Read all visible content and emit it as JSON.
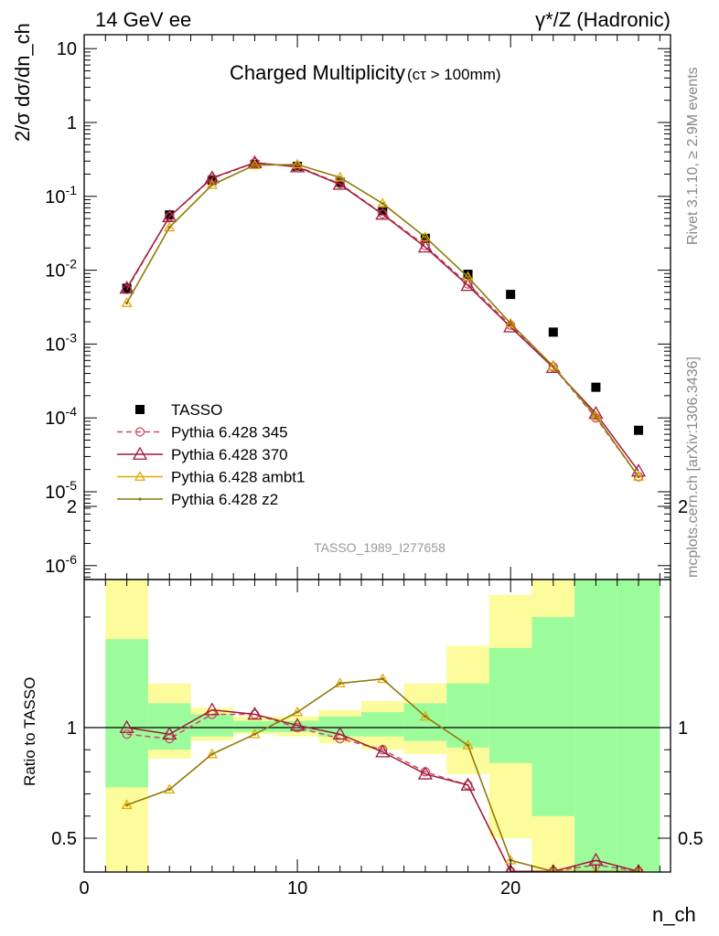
{
  "header": {
    "left": "14 GeV ee",
    "right": "γ*/Z (Hadronic)"
  },
  "side": {
    "rivet": "Rivet 3.1.10, ≥ 2.9M events",
    "mcplots": "mcplots.cern.ch [arXiv:1306.3436]"
  },
  "chart_data": [
    {
      "type": "scatter",
      "title": "Charged Multiplicity",
      "subtitle": "(cτ > 100mm)",
      "ylabel": "2/σ dσ/dn_ch",
      "ylog": true,
      "ylim": [
        5e-07,
        20
      ],
      "xlim": [
        0,
        27.5
      ],
      "yticks": [
        "10^-6",
        "10^-5",
        "10^-4",
        "10^-3",
        "10^-2",
        "10^-1",
        "1",
        "10"
      ],
      "reference": "TASSO_1989_I277658",
      "legend_position": "bottom-left",
      "x": [
        2,
        4,
        6,
        8,
        10,
        12,
        14,
        16,
        18,
        20,
        22,
        24,
        26
      ],
      "series": [
        {
          "name": "TASSO",
          "color": "#000000",
          "marker": "square",
          "values": [
            0.0057,
            0.056,
            0.165,
            0.27,
            0.255,
            0.155,
            0.064,
            0.027,
            0.0088,
            0.0047,
            0.00145,
            0.00026,
            6.8e-05
          ]
        },
        {
          "name": "Pythia 6.428 345",
          "color": "#cc4c66",
          "marker": "circle",
          "dashed": true,
          "values": [
            0.0055,
            0.053,
            0.175,
            0.285,
            0.255,
            0.148,
            0.058,
            0.0215,
            0.0065,
            0.0018,
            0.00049,
            0.0001,
            1.6e-05
          ]
        },
        {
          "name": "Pythia 6.428 370",
          "color": "#a01a3a",
          "marker": "triangle",
          "values": [
            0.0057,
            0.053,
            0.178,
            0.285,
            0.25,
            0.145,
            0.057,
            0.0205,
            0.0062,
            0.0017,
            0.00048,
            0.000115,
            1.9e-05
          ]
        },
        {
          "name": "Pythia 6.428 ambt1",
          "color": "#e8a800",
          "marker": "triangle",
          "values": [
            0.0036,
            0.038,
            0.143,
            0.265,
            0.27,
            0.18,
            0.08,
            0.028,
            0.0081,
            0.0019,
            0.0005,
            0.000105,
            1.6e-05
          ]
        },
        {
          "name": "Pythia 6.428 z2",
          "color": "#8c7a10",
          "marker": "dot",
          "values": [
            0.0036,
            0.038,
            0.143,
            0.265,
            0.27,
            0.18,
            0.08,
            0.028,
            0.0081,
            0.0019,
            0.0005,
            0.000105,
            1.6e-05
          ]
        }
      ]
    },
    {
      "type": "line",
      "ylabel": "Ratio to TASSO",
      "xlabel": "n_ch",
      "xlim": [
        0,
        27.5
      ],
      "ylim": [
        0.35,
        2.25
      ],
      "xticks": [
        "0",
        "10",
        "20"
      ],
      "yticks": [
        "0.5",
        "1",
        "2"
      ],
      "bins": [
        [
          1,
          3
        ],
        [
          3,
          5
        ],
        [
          5,
          7
        ],
        [
          7,
          9
        ],
        [
          9,
          11
        ],
        [
          11,
          13
        ],
        [
          13,
          15
        ],
        [
          15,
          17
        ],
        [
          17,
          19
        ],
        [
          19,
          21
        ],
        [
          21,
          23
        ],
        [
          23,
          25
        ],
        [
          25,
          27
        ]
      ],
      "band_inner": [
        [
          0.73,
          1.4
        ],
        [
          0.9,
          1.11
        ],
        [
          0.96,
          1.06
        ],
        [
          0.98,
          1.03
        ],
        [
          0.98,
          1.03
        ],
        [
          0.96,
          1.05
        ],
        [
          0.96,
          1.07
        ],
        [
          0.94,
          1.11
        ],
        [
          0.91,
          1.2
        ],
        [
          0.84,
          1.36
        ],
        [
          0.6,
          1.5
        ],
        [
          0.35,
          1.84
        ],
        [
          0.35,
          2.3
        ]
      ],
      "band_outer": [
        [
          0.35,
          1.7
        ],
        [
          0.86,
          1.2
        ],
        [
          0.94,
          1.09
        ],
        [
          0.97,
          1.05
        ],
        [
          0.96,
          1.05
        ],
        [
          0.93,
          1.08
        ],
        [
          0.9,
          1.12
        ],
        [
          0.88,
          1.2
        ],
        [
          0.79,
          1.37
        ],
        [
          0.5,
          1.6
        ],
        [
          0.35,
          1.9
        ],
        [
          0.35,
          2.3
        ],
        [
          0.35,
          2.3
        ]
      ],
      "series": [
        {
          "name": "Pythia 6.428 345",
          "values": [
            0.97,
            0.95,
            1.06,
            1.06,
            1.0,
            0.95,
            0.9,
            0.8,
            0.74,
            0.35,
            0.35,
            0.38,
            0.35
          ]
        },
        {
          "name": "Pythia 6.428 370",
          "values": [
            1.0,
            0.97,
            1.08,
            1.06,
            1.01,
            0.97,
            0.89,
            0.79,
            0.74,
            0.35,
            0.35,
            0.4,
            0.35
          ]
        },
        {
          "name": "Pythia 6.428 ambt1",
          "values": [
            0.65,
            0.72,
            0.88,
            0.97,
            1.07,
            1.2,
            1.22,
            1.05,
            0.92,
            0.4,
            0.35,
            0.35,
            0.35
          ]
        },
        {
          "name": "Pythia 6.428 z2",
          "values": [
            0.65,
            0.72,
            0.88,
            0.97,
            1.07,
            1.2,
            1.22,
            1.05,
            0.92,
            0.4,
            0.35,
            0.35,
            0.35
          ]
        }
      ]
    }
  ],
  "colors": {
    "band_inner": "#9cfc9c",
    "band_outer": "#fcfc9c"
  }
}
